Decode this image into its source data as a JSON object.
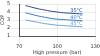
{
  "chart_data": {
    "type": "line",
    "x_label": "High pressure (bar)",
    "y_label": "COP",
    "x": [
      75,
      80,
      85,
      90,
      95,
      100,
      105,
      110,
      115,
      120
    ],
    "series": [
      {
        "name": "35°C",
        "color": "#1f4e9a",
        "values": [
          4.8,
          4.6,
          4.4,
          4.25,
          4.1,
          4.0,
          3.9,
          3.85,
          3.8,
          3.75
        ]
      },
      {
        "name": "40°C",
        "color": "#3a7bc8",
        "values": [
          3.9,
          3.7,
          3.5,
          3.35,
          3.2,
          3.1,
          3.05,
          3.0,
          2.95,
          2.9
        ]
      },
      {
        "name": "45°C",
        "color": "#6aa8dc",
        "values": [
          3.0,
          2.85,
          2.7,
          2.55,
          2.45,
          2.35,
          2.3,
          2.25,
          2.2,
          2.15
        ]
      }
    ],
    "xlim": [
      70,
      130
    ],
    "xticks": [
      70,
      100,
      130
    ],
    "ylim": [
      1,
      5
    ],
    "yticks": [
      1,
      2,
      3,
      4,
      5
    ],
    "grid": true
  }
}
